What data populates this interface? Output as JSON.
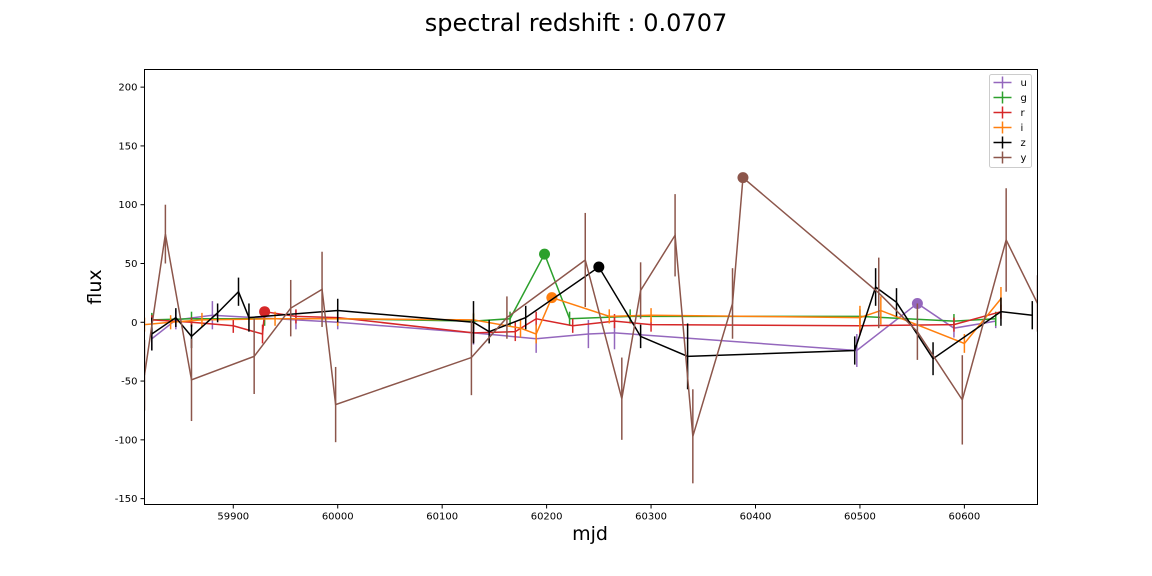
{
  "chart_data": {
    "type": "scatter",
    "title": "spectral redshift : 0.0707",
    "xlabel": "mjd",
    "ylabel": "flux",
    "xlim": [
      59815,
      60670
    ],
    "ylim": [
      -155,
      215
    ],
    "xticks": [
      59900,
      60000,
      60100,
      60200,
      60300,
      60400,
      60500,
      60600
    ],
    "yticks": [
      -150,
      -100,
      -50,
      0,
      50,
      100,
      150,
      200
    ],
    "grid": false,
    "legend_position": "top-right",
    "series": [
      {
        "name": "u",
        "color": "#9467bd",
        "points": [
          [
            59822,
            -14,
            10
          ],
          [
            59845,
            2,
            8
          ],
          [
            59880,
            6,
            12
          ],
          [
            59960,
            2,
            8
          ],
          [
            60000,
            0,
            6
          ],
          [
            60130,
            -9,
            10
          ],
          [
            60190,
            -14,
            12
          ],
          [
            60240,
            -10,
            12
          ],
          [
            60265,
            -9,
            14
          ],
          [
            60497,
            -24,
            14
          ],
          [
            60555,
            16,
            0
          ],
          [
            60590,
            -5,
            8
          ],
          [
            60630,
            1,
            6
          ]
        ],
        "highlight": [
          60555,
          16
        ]
      },
      {
        "name": "g",
        "color": "#2ca02c",
        "points": [
          [
            59822,
            2,
            6
          ],
          [
            59860,
            3,
            6
          ],
          [
            59930,
            3,
            6
          ],
          [
            60000,
            3,
            6
          ],
          [
            60130,
            1,
            6
          ],
          [
            60165,
            3,
            6
          ],
          [
            60198,
            58,
            0
          ],
          [
            60222,
            3,
            6
          ],
          [
            60280,
            5,
            6
          ],
          [
            60500,
            5,
            6
          ],
          [
            60590,
            1,
            6
          ],
          [
            60630,
            3,
            6
          ]
        ],
        "highlight": [
          60198,
          58
        ]
      },
      {
        "name": "r",
        "color": "#d62728",
        "points": [
          [
            59822,
            2,
            4
          ],
          [
            59860,
            0,
            4
          ],
          [
            59900,
            -3,
            6
          ],
          [
            59928,
            -10,
            8
          ],
          [
            59930,
            9,
            0
          ],
          [
            59960,
            5,
            6
          ],
          [
            60000,
            4,
            6
          ],
          [
            60130,
            -9,
            8
          ],
          [
            60170,
            -8,
            8
          ],
          [
            60190,
            3,
            6
          ],
          [
            60225,
            -3,
            6
          ],
          [
            60265,
            1,
            6
          ],
          [
            60300,
            -2,
            6
          ],
          [
            60500,
            -3,
            8
          ],
          [
            60590,
            -2,
            6
          ],
          [
            60635,
            9,
            6
          ]
        ],
        "highlight": [
          59930,
          9
        ]
      },
      {
        "name": "i",
        "color": "#ff7f0e",
        "points": [
          [
            59815,
            -2,
            6
          ],
          [
            59840,
            0,
            6
          ],
          [
            59870,
            2,
            6
          ],
          [
            59940,
            3,
            6
          ],
          [
            60000,
            3,
            6
          ],
          [
            60130,
            2,
            6
          ],
          [
            60175,
            -5,
            8
          ],
          [
            60190,
            -10,
            8
          ],
          [
            60205,
            21,
            0
          ],
          [
            60260,
            5,
            6
          ],
          [
            60300,
            6,
            6
          ],
          [
            60500,
            4,
            10
          ],
          [
            60520,
            10,
            12
          ],
          [
            60600,
            -18,
            8
          ],
          [
            60635,
            20,
            10
          ]
        ],
        "highlight": [
          60205,
          21
        ]
      },
      {
        "name": "z",
        "color": "#000000",
        "points": [
          [
            59822,
            -10,
            14
          ],
          [
            59845,
            4,
            8
          ],
          [
            59860,
            -12,
            10
          ],
          [
            59885,
            8,
            8
          ],
          [
            59905,
            26,
            12
          ],
          [
            59915,
            4,
            12
          ],
          [
            60000,
            10,
            10
          ],
          [
            60130,
            0,
            18
          ],
          [
            60145,
            -8,
            10
          ],
          [
            60180,
            4,
            10
          ],
          [
            60250,
            47,
            0
          ],
          [
            60290,
            -12,
            10
          ],
          [
            60335,
            -29,
            28
          ],
          [
            60495,
            -24,
            12
          ],
          [
            60515,
            30,
            16
          ],
          [
            60535,
            17,
            12
          ],
          [
            60570,
            -31,
            14
          ],
          [
            60635,
            9,
            12
          ],
          [
            60665,
            6,
            12
          ]
        ],
        "highlight": [
          60250,
          47
        ]
      },
      {
        "name": "y",
        "color": "#8c564b",
        "points": [
          [
            59815,
            -45,
            30
          ],
          [
            59835,
            75,
            25
          ],
          [
            59860,
            -49,
            35
          ],
          [
            59920,
            -29,
            32
          ],
          [
            59955,
            12,
            24
          ],
          [
            59985,
            28,
            32
          ],
          [
            59998,
            -70,
            32
          ],
          [
            60128,
            -30,
            32
          ],
          [
            60162,
            4,
            18
          ],
          [
            60237,
            53,
            40
          ],
          [
            60272,
            -65,
            35
          ],
          [
            60290,
            27,
            24
          ],
          [
            60323,
            74,
            35
          ],
          [
            60340,
            -97,
            40
          ],
          [
            60378,
            16,
            30
          ],
          [
            60388,
            123,
            0
          ],
          [
            60518,
            25,
            30
          ],
          [
            60555,
            -8,
            24
          ],
          [
            60598,
            -66,
            38
          ],
          [
            60640,
            70,
            44
          ],
          [
            60670,
            16,
            24
          ]
        ],
        "highlight": [
          60388,
          123
        ]
      }
    ]
  }
}
